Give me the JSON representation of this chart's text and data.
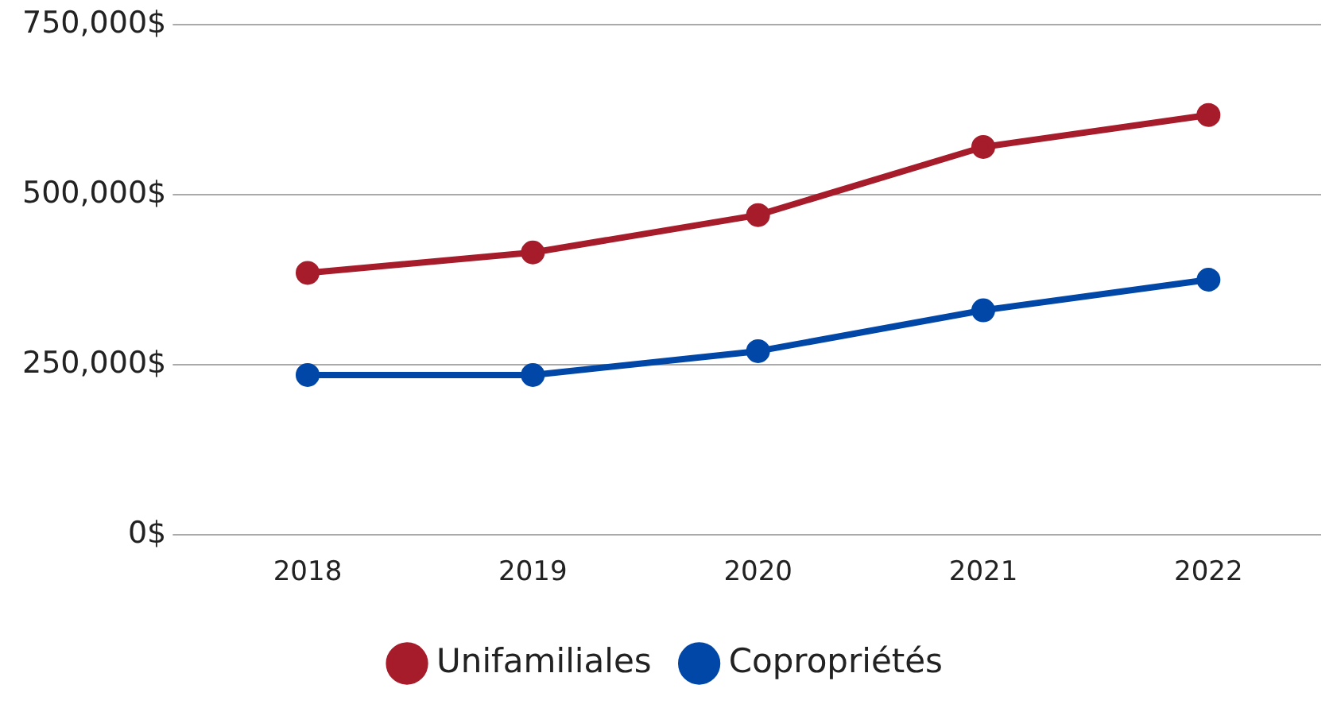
{
  "chart_data": {
    "type": "line",
    "categories": [
      "2018",
      "2019",
      "2020",
      "2021",
      "2022"
    ],
    "series": [
      {
        "name": "Unifamiliales",
        "color": "#a71c2a",
        "values": [
          385000,
          415000,
          470000,
          570000,
          617000
        ]
      },
      {
        "name": "Copropriétés",
        "color": "#0047a8",
        "values": [
          235000,
          235000,
          270000,
          330000,
          375000
        ]
      }
    ],
    "ylim": [
      0,
      750000
    ],
    "yticks": [
      {
        "value": 0,
        "label": "0$"
      },
      {
        "value": 250000,
        "label": "250,000$"
      },
      {
        "value": 500000,
        "label": "500,000$"
      },
      {
        "value": 750000,
        "label": "750,000$"
      }
    ],
    "grid": "y",
    "legend": "bottom",
    "marker": "circle",
    "line_style": "solid"
  }
}
